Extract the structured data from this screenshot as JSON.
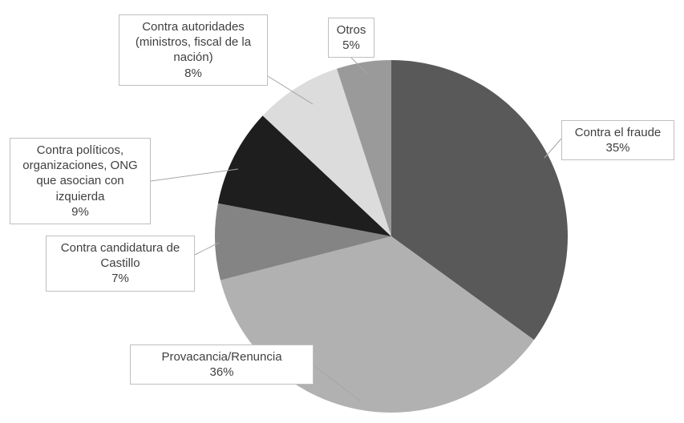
{
  "chart_data": {
    "type": "pie",
    "title": "",
    "categories": [
      "Contra el fraude",
      "Provacancia/Renuncia",
      "Contra candidatura de Castillo",
      "Contra políticos, organizaciones, ONG que asocian con izquierda",
      "Contra autoridades (ministros, fiscal de la nación)",
      "Otros"
    ],
    "values": [
      35,
      36,
      7,
      9,
      8,
      5
    ],
    "unit": "%",
    "colors": [
      "#595959",
      "#b1b1b1",
      "#848484",
      "#1e1e1e",
      "#dcdcdc",
      "#9a9a9a"
    ],
    "start_angle_deg": 0,
    "direction": "clockwise",
    "legend": "callout-labels-with-leader-lines",
    "grid": false
  },
  "callouts": {
    "fraude": "Contra el fraude\n35%",
    "provacancia": "Provacancia/Renuncia\n36%",
    "candidatura": "Contra candidatura de\nCastillo\n7%",
    "politicos": "Contra políticos,\norganizaciones, ONG\nque asocian con\nizquierda\n9%",
    "autoridades": "Contra autoridades\n(ministros, fiscal de la\nnación)\n8%",
    "otros": "Otros\n5%"
  }
}
